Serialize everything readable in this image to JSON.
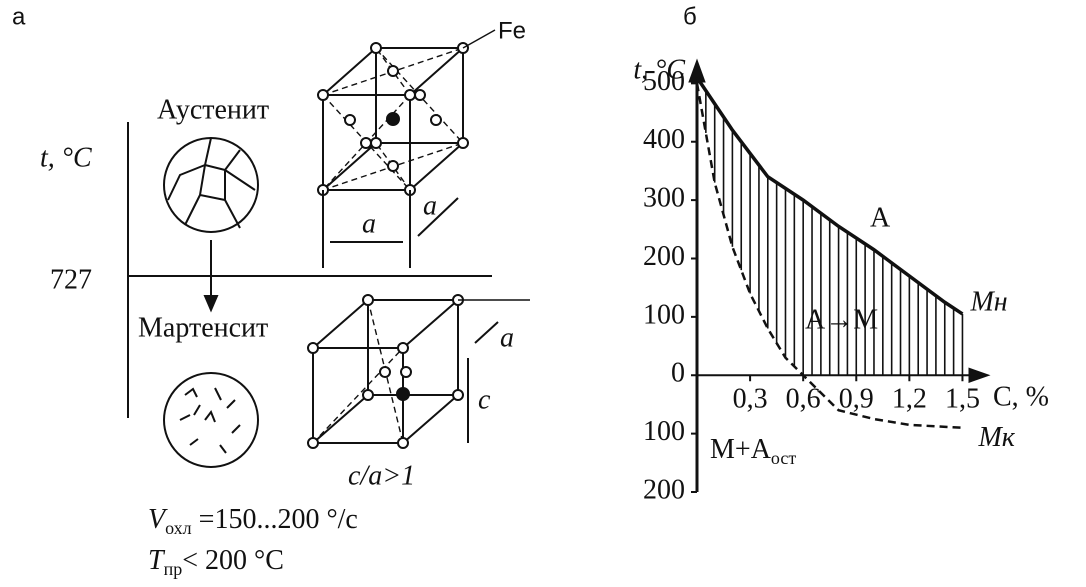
{
  "panel_a": {
    "label": "а",
    "element": "Fe",
    "axis_label": "t, °C",
    "phase_top": "Аустенит",
    "temperature": "727",
    "phase_bottom": "Мартенсит",
    "lattice_a_front": "a",
    "lattice_a_side": "a",
    "lattice_a_bottom": "a",
    "lattice_c": "c",
    "ratio": "c/a>1",
    "cooling_rate": {
      "symbol": "V",
      "sub": "охл",
      "text": " =150...200 °/с"
    },
    "tempering": {
      "symbol": "T",
      "sub": "пр",
      "text": "< 200 °C"
    }
  },
  "chart_data": {
    "type": "line",
    "panel_label": "б",
    "y_label": "t, °C",
    "x_label": "C, %",
    "xlim": [
      0,
      1.65
    ],
    "ylim": [
      -200,
      540
    ],
    "xticks": [
      {
        "value": 0.3,
        "label": "0,3"
      },
      {
        "value": 0.6,
        "label": "0,6"
      },
      {
        "value": 0.9,
        "label": "0,9"
      },
      {
        "value": 1.2,
        "label": "1,2"
      },
      {
        "value": 1.5,
        "label": "1,5"
      }
    ],
    "yticks": [
      500,
      400,
      300,
      200,
      100,
      0,
      {
        "value": -100,
        "label": "100"
      },
      {
        "value": -200,
        "label": "200"
      }
    ],
    "series": [
      {
        "name": "Mн",
        "color": "#111111",
        "x": [
          0,
          0.2,
          0.4,
          0.6,
          0.8,
          1.0,
          1.2,
          1.4,
          1.5
        ],
        "values": [
          510,
          420,
          340,
          300,
          255,
          215,
          170,
          125,
          105
        ]
      },
      {
        "name": "Mк",
        "color": "#111111",
        "x": [
          0,
          0.1,
          0.2,
          0.3,
          0.4,
          0.5,
          0.6,
          0.8,
          1.0,
          1.2,
          1.5
        ],
        "values": [
          500,
          330,
          220,
          140,
          80,
          30,
          0,
          -60,
          -75,
          -85,
          -90
        ]
      }
    ],
    "annotations": [
      {
        "text": "A"
      },
      {
        "text": "A→M"
      },
      {
        "text": "M+A",
        "sub": "ост"
      }
    ]
  }
}
